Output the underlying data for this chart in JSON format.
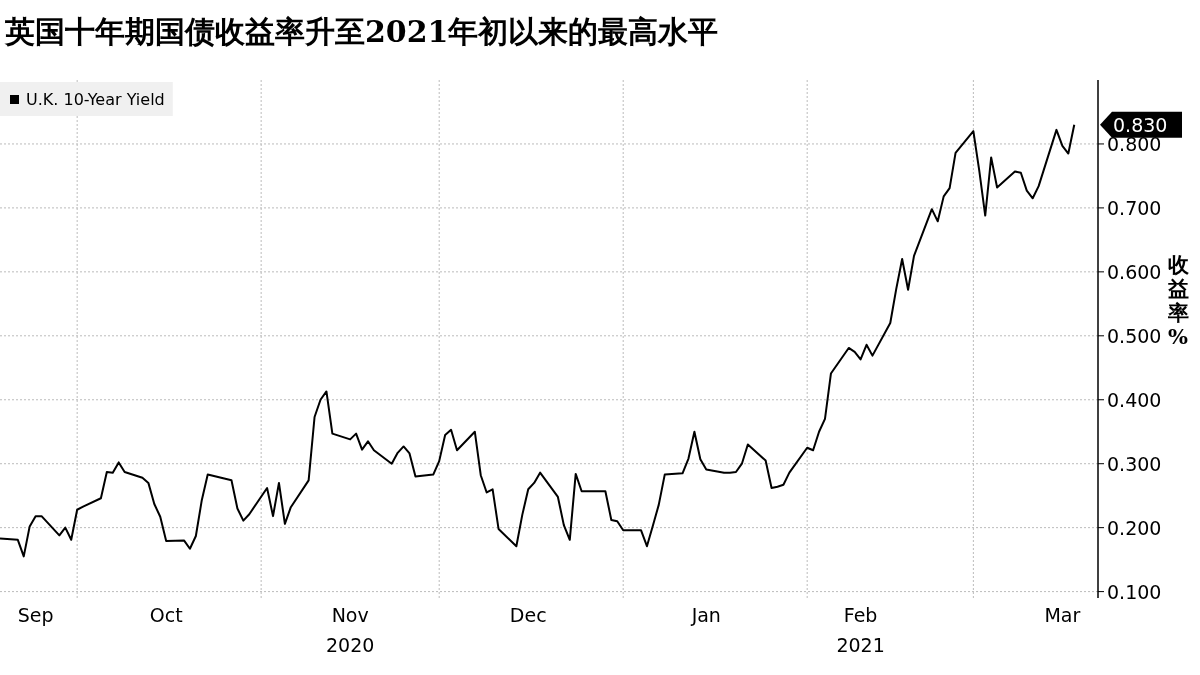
{
  "chart_data": {
    "type": "line",
    "title": "英国十年期国债收益率升至2021年初以来的最高水平",
    "ylabel": "收益率%",
    "x": [
      "2020-09-18",
      "2020-09-21",
      "2020-09-22",
      "2020-09-23",
      "2020-09-24",
      "2020-09-25",
      "2020-09-28",
      "2020-09-29",
      "2020-09-30",
      "2020-10-01",
      "2020-10-02",
      "2020-10-05",
      "2020-10-06",
      "2020-10-07",
      "2020-10-08",
      "2020-10-09",
      "2020-10-12",
      "2020-10-13",
      "2020-10-14",
      "2020-10-15",
      "2020-10-16",
      "2020-10-19",
      "2020-10-20",
      "2020-10-21",
      "2020-10-22",
      "2020-10-23",
      "2020-10-27",
      "2020-10-28",
      "2020-10-29",
      "2020-10-30",
      "2020-11-02",
      "2020-11-03",
      "2020-11-04",
      "2020-11-05",
      "2020-11-06",
      "2020-11-09",
      "2020-11-10",
      "2020-11-11",
      "2020-11-12",
      "2020-11-13",
      "2020-11-16",
      "2020-11-17",
      "2020-11-18",
      "2020-11-19",
      "2020-11-20",
      "2020-11-23",
      "2020-11-24",
      "2020-11-25",
      "2020-11-26",
      "2020-11-27",
      "2020-11-30",
      "2020-12-01",
      "2020-12-02",
      "2020-12-03",
      "2020-12-04",
      "2020-12-07",
      "2020-12-08",
      "2020-12-09",
      "2020-12-10",
      "2020-12-11",
      "2020-12-14",
      "2020-12-15",
      "2020-12-16",
      "2020-12-17",
      "2020-12-18",
      "2020-12-21",
      "2020-12-22",
      "2020-12-23",
      "2020-12-24",
      "2020-12-25",
      "2020-12-28",
      "2020-12-29",
      "2020-12-30",
      "2020-12-31",
      "2021-01-01",
      "2021-01-04",
      "2021-01-05",
      "2021-01-06",
      "2021-01-07",
      "2021-01-08",
      "2021-01-11",
      "2021-01-12",
      "2021-01-13",
      "2021-01-14",
      "2021-01-15",
      "2021-01-18",
      "2021-01-19",
      "2021-01-20",
      "2021-01-21",
      "2021-01-22",
      "2021-01-25",
      "2021-01-26",
      "2021-01-27",
      "2021-01-28",
      "2021-01-29",
      "2021-02-01",
      "2021-02-02",
      "2021-02-03",
      "2021-02-04",
      "2021-02-05",
      "2021-02-08",
      "2021-02-09",
      "2021-02-10",
      "2021-02-11",
      "2021-02-12",
      "2021-02-15",
      "2021-02-16",
      "2021-02-17",
      "2021-02-18",
      "2021-02-19",
      "2021-02-22",
      "2021-02-23",
      "2021-02-24",
      "2021-02-25",
      "2021-02-26",
      "2021-03-01",
      "2021-03-02",
      "2021-03-03",
      "2021-03-04",
      "2021-03-05",
      "2021-03-08",
      "2021-03-09",
      "2021-03-10",
      "2021-03-11",
      "2021-03-12",
      "2021-03-15",
      "2021-03-16",
      "2021-03-17",
      "2021-03-18"
    ],
    "series": [
      {
        "name": "U.K. 10-Year Yield",
        "color": "#000000",
        "values": [
          0.183,
          0.181,
          0.155,
          0.202,
          0.218,
          0.218,
          0.188,
          0.2,
          0.181,
          0.228,
          0.233,
          0.246,
          0.287,
          0.286,
          0.302,
          0.287,
          0.278,
          0.27,
          0.237,
          0.217,
          0.179,
          0.18,
          0.167,
          0.187,
          0.243,
          0.283,
          0.274,
          0.23,
          0.211,
          0.221,
          0.262,
          0.218,
          0.27,
          0.206,
          0.232,
          0.274,
          0.373,
          0.4,
          0.413,
          0.347,
          0.338,
          0.347,
          0.322,
          0.335,
          0.321,
          0.3,
          0.317,
          0.327,
          0.316,
          0.28,
          0.283,
          0.304,
          0.345,
          0.353,
          0.321,
          0.35,
          0.282,
          0.255,
          0.26,
          0.198,
          0.171,
          0.22,
          0.26,
          0.27,
          0.286,
          0.248,
          0.204,
          0.181,
          0.284,
          0.257,
          0.257,
          0.257,
          0.212,
          0.21,
          0.196,
          0.196,
          0.171,
          0.203,
          0.236,
          0.283,
          0.285,
          0.308,
          0.35,
          0.307,
          0.291,
          0.286,
          0.286,
          0.287,
          0.3,
          0.33,
          0.305,
          0.262,
          0.264,
          0.267,
          0.286,
          0.325,
          0.321,
          0.35,
          0.37,
          0.441,
          0.481,
          0.475,
          0.463,
          0.486,
          0.469,
          0.52,
          0.573,
          0.62,
          0.572,
          0.625,
          0.698,
          0.679,
          0.718,
          0.731,
          0.786,
          0.82,
          0.758,
          0.688,
          0.779,
          0.732,
          0.757,
          0.755,
          0.727,
          0.715,
          0.734,
          0.822,
          0.797,
          0.785,
          0.83
        ]
      }
    ],
    "xlim": [
      "2020-09-18",
      "2021-03-22"
    ],
    "xticks": [
      {
        "value": "2020-09-24",
        "label": "Sep"
      },
      {
        "value": "2020-10-01",
        "label": null
      },
      {
        "value": "2020-10-16",
        "label": "Oct"
      },
      {
        "value": "2020-11-01",
        "label": null
      },
      {
        "value": "2020-11-16",
        "label": "Nov\n2020"
      },
      {
        "value": "2020-12-01",
        "label": null
      },
      {
        "value": "2020-12-16",
        "label": "Dec"
      },
      {
        "value": "2021-01-01",
        "label": null
      },
      {
        "value": "2021-01-15",
        "label": "Jan"
      },
      {
        "value": "2021-02-01",
        "label": null
      },
      {
        "value": "2021-02-10",
        "label": "Feb\n2021"
      },
      {
        "value": "2021-03-01",
        "label": null
      },
      {
        "value": "2021-03-16",
        "label": "Mar"
      }
    ],
    "ylim": [
      0.09,
      0.9
    ],
    "yticks": [
      {
        "value": 0.1,
        "label": "0.100"
      },
      {
        "value": 0.2,
        "label": "0.200"
      },
      {
        "value": 0.3,
        "label": "0.300"
      },
      {
        "value": 0.4,
        "label": "0.400"
      },
      {
        "value": 0.5,
        "label": "0.500"
      },
      {
        "value": 0.6,
        "label": "0.600"
      },
      {
        "value": 0.7,
        "label": "0.700"
      },
      {
        "value": 0.8,
        "label": "0.800"
      }
    ],
    "grid": true,
    "legend": "top left",
    "line_style": "solid",
    "marker": "none",
    "annotations": [
      {
        "text": "0.830",
        "x": "2021-03-18",
        "y": 0.83
      }
    ]
  }
}
